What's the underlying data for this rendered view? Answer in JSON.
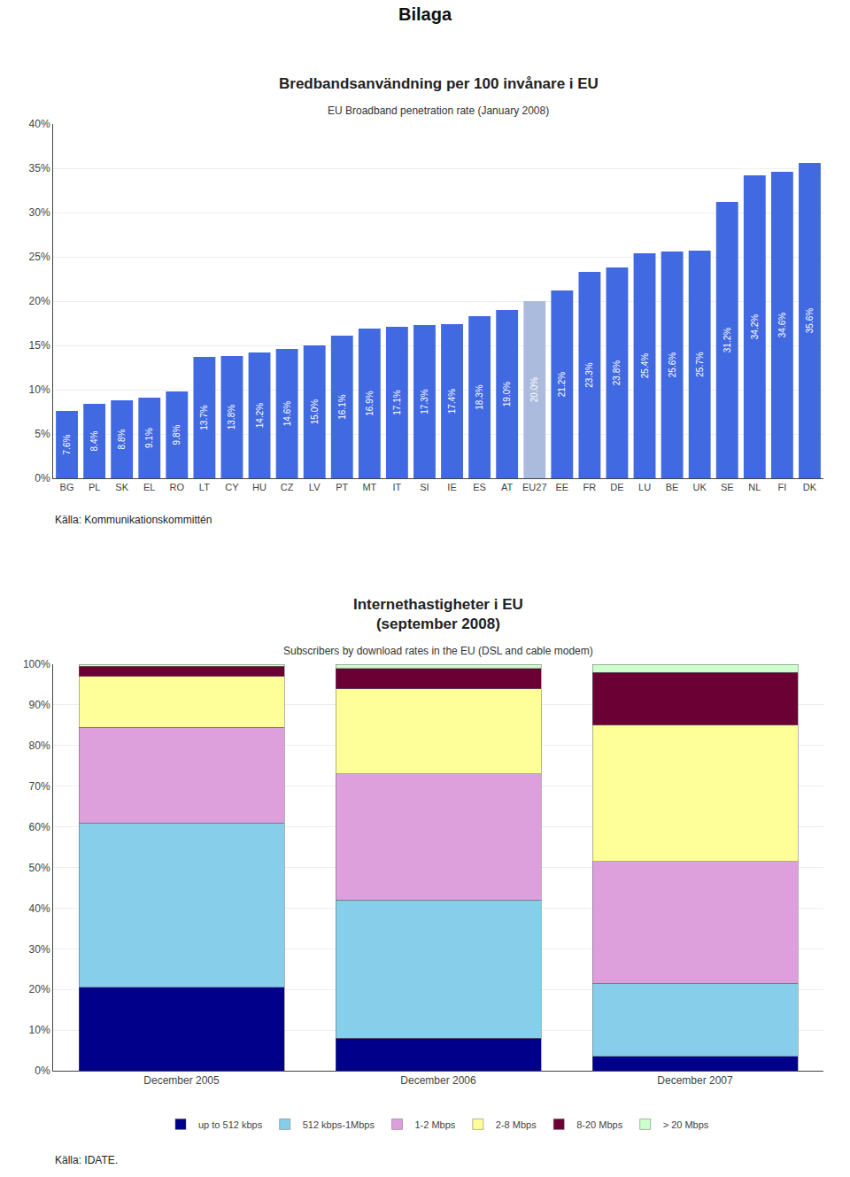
{
  "title": "Bilaga",
  "chart_data": [
    {
      "type": "bar",
      "title": "Bredbandsanvändning per 100 invånare i EU",
      "subtitle": "EU Broadband penetration rate (January 2008)",
      "annotations": [
        "Källa: Kommunikationskommittén"
      ],
      "categories": [
        "BG",
        "PL",
        "SK",
        "EL",
        "RO",
        "LT",
        "CY",
        "HU",
        "CZ",
        "LV",
        "PT",
        "MT",
        "IT",
        "SI",
        "IE",
        "ES",
        "AT",
        "EU27",
        "EE",
        "FR",
        "DE",
        "LU",
        "BE",
        "UK",
        "SE",
        "NL",
        "FI",
        "DK"
      ],
      "values": [
        7.6,
        8.4,
        8.8,
        9.1,
        9.8,
        13.7,
        13.8,
        14.2,
        14.6,
        15.0,
        16.1,
        16.9,
        17.1,
        17.3,
        17.4,
        18.3,
        19.0,
        20.0,
        21.2,
        23.3,
        23.8,
        25.4,
        25.6,
        25.7,
        31.2,
        34.2,
        34.6,
        35.6
      ],
      "value_labels": [
        "7.6%",
        "8.4%",
        "8.8%",
        "9.1%",
        "9.8%",
        "13.7%",
        "13.8%",
        "14.2%",
        "14.6%",
        "15.0%",
        "16.1%",
        "16.9%",
        "17.1%",
        "17.3%",
        "17.4%",
        "18.3%",
        "19.0%",
        "20.0%",
        "21.2%",
        "23.3%",
        "23.8%",
        "25.4%",
        "25.6%",
        "25.7%",
        "31.2%",
        "34.2%",
        "34.6%",
        "35.6%"
      ],
      "data_labels": true,
      "colors": [
        "#4169E1",
        "#4169E1",
        "#4169E1",
        "#4169E1",
        "#4169E1",
        "#4169E1",
        "#4169E1",
        "#4169E1",
        "#4169E1",
        "#4169E1",
        "#4169E1",
        "#4169E1",
        "#4169E1",
        "#4169E1",
        "#4169E1",
        "#4169E1",
        "#4169E1",
        "#AABBDD",
        "#4169E1",
        "#4169E1",
        "#4169E1",
        "#4169E1",
        "#4169E1",
        "#4169E1",
        "#4169E1",
        "#4169E1",
        "#4169E1",
        "#4169E1"
      ],
      "ylim": [
        0,
        40
      ],
      "yticks": [
        {
          "value": 0,
          "label": "0%"
        },
        {
          "value": 5,
          "label": "5%"
        },
        {
          "value": 10,
          "label": "10%"
        },
        {
          "value": 15,
          "label": "15%"
        },
        {
          "value": 20,
          "label": "20%"
        },
        {
          "value": 25,
          "label": "25%"
        },
        {
          "value": 30,
          "label": "30%"
        },
        {
          "value": 35,
          "label": "35%"
        },
        {
          "value": 40,
          "label": "40%"
        }
      ],
      "grid": true
    },
    {
      "type": "bar",
      "stacked": true,
      "title": "Internethastigheter i EU\n(september 2008)",
      "subtitle": "Subscribers by download rates in the EU (DSL and cable modem)",
      "annotations": [
        "Källa: IDATE."
      ],
      "categories": [
        "December 2005",
        "December 2006",
        "December 2007"
      ],
      "series": [
        {
          "name": "up to 512 kbps",
          "color": "#00008B",
          "values": [
            20.5,
            8.0,
            3.5
          ]
        },
        {
          "name": "512 kbps-1Mbps",
          "color": "#87CEEB",
          "values": [
            40.5,
            34.0,
            18.0
          ]
        },
        {
          "name": "1-2 Mbps",
          "color": "#DDA0DD",
          "values": [
            23.5,
            31.0,
            30.0
          ]
        },
        {
          "name": "2-8 Mbps",
          "color": "#FFFF99",
          "values": [
            12.5,
            21.0,
            33.5
          ]
        },
        {
          "name": "8-20 Mbps",
          "color": "#6B0035",
          "values": [
            2.5,
            5.0,
            13.0
          ]
        },
        {
          "name": "> 20 Mbps",
          "color": "#CCFFCC",
          "values": [
            0.5,
            1.0,
            2.0
          ]
        }
      ],
      "ylim": [
        0,
        100
      ],
      "yticks": [
        {
          "value": 0,
          "label": "0%"
        },
        {
          "value": 10,
          "label": "10%"
        },
        {
          "value": 20,
          "label": "20%"
        },
        {
          "value": 30,
          "label": "30%"
        },
        {
          "value": 40,
          "label": "40%"
        },
        {
          "value": 50,
          "label": "50%"
        },
        {
          "value": 60,
          "label": "60%"
        },
        {
          "value": 70,
          "label": "70%"
        },
        {
          "value": 80,
          "label": "80%"
        },
        {
          "value": 90,
          "label": "90%"
        },
        {
          "value": 100,
          "label": "100%"
        }
      ],
      "grid": true,
      "legend": "bottom"
    }
  ]
}
